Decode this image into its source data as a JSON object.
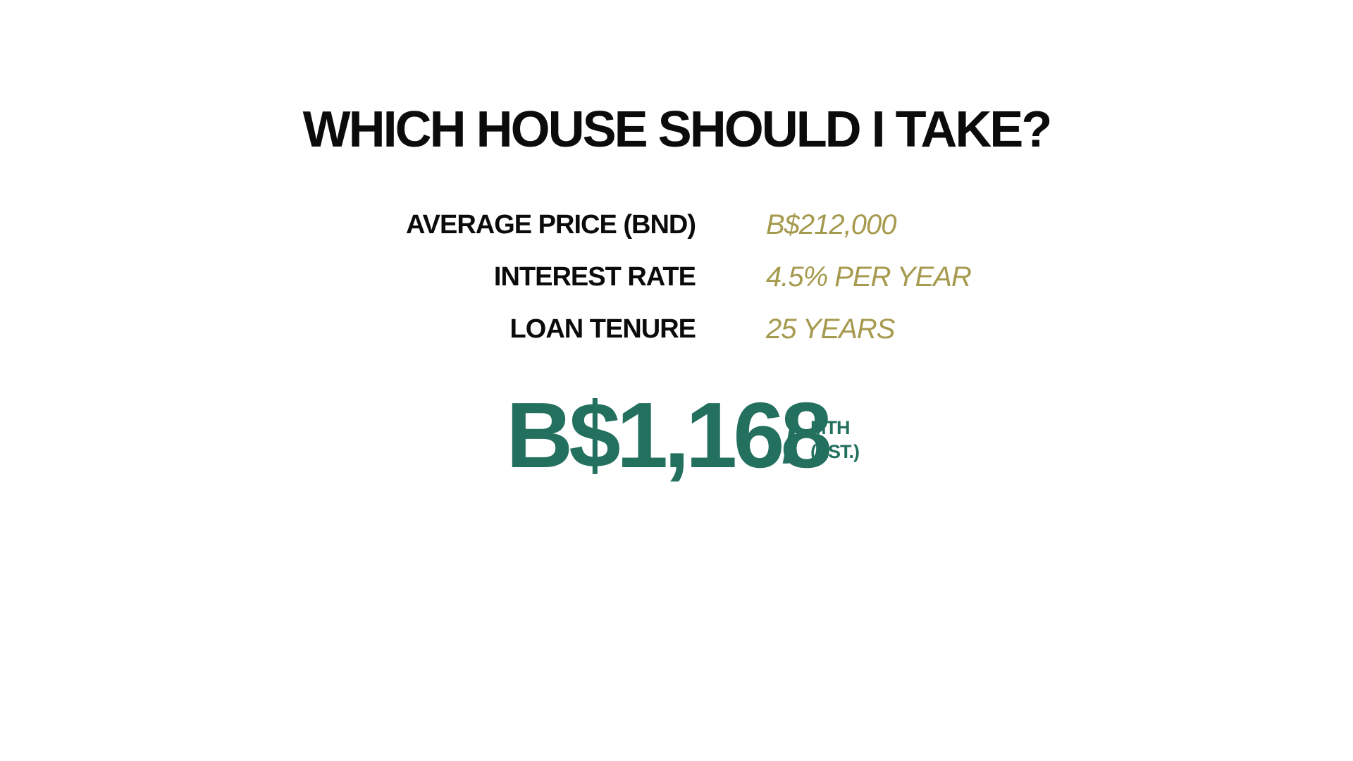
{
  "title": "WHICH HOUSE SHOULD I TAKE?",
  "rows": [
    {
      "label": "AVERAGE PRICE (BND)",
      "value": "B$212,000"
    },
    {
      "label": "INTEREST RATE",
      "value": "4.5% PER YEAR"
    },
    {
      "label": "LOAN TENURE",
      "value": "25 YEARS"
    }
  ],
  "result": {
    "amount": "B$1,168",
    "slash": "/",
    "unit_line1": "MTH",
    "unit_line2": "(EST.)"
  },
  "colors": {
    "text": "#0b0b0b",
    "value": "#a59a4e",
    "accent": "#23705f",
    "background": "#ffffff"
  }
}
